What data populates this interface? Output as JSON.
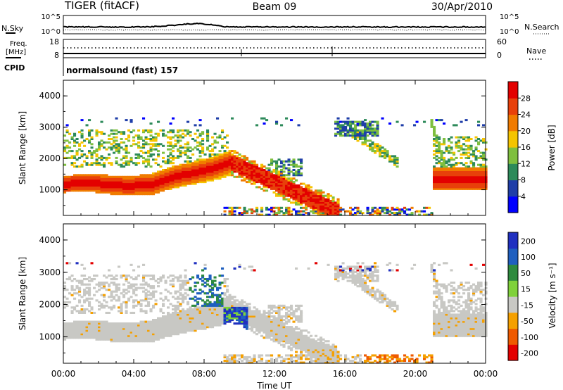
{
  "header": {
    "title": "TIGER (fitACF)",
    "beam": "Beam 09",
    "date": "30/Apr/2010"
  },
  "noise_panel": {
    "left_label": "N.Sky",
    "right_label": "N.Search",
    "left_ticks": [
      "10^5",
      "10^0"
    ],
    "right_ticks": [
      "10^5",
      "10^0"
    ]
  },
  "freq_panel": {
    "left_label_line1": "Freq.",
    "left_label_line2": "[MHz]",
    "right_label": "Nave",
    "left_ticks": [
      "18",
      "8"
    ],
    "right_ticks": [
      "60",
      "0"
    ]
  },
  "cpid": {
    "label": "CPID",
    "value": "normalsound (fast) 157"
  },
  "chart_data": [
    {
      "type": "heatmap",
      "name": "power",
      "ylabel": "Slant Range [km]",
      "ylim": [
        180,
        4500
      ],
      "yticks": [
        "1000",
        "2000",
        "3000",
        "4000"
      ],
      "xticks": [
        "00:00",
        "04:00",
        "08:00",
        "12:00",
        "16:00",
        "20:00",
        "00:00"
      ],
      "colorbar_label": "Power [dB]",
      "colorbar_ticks": [
        "28",
        "24",
        "20",
        "16",
        "12",
        "8",
        "4"
      ],
      "colors": [
        "#0000ff",
        "#1f3ea8",
        "#2d8a5a",
        "#7fbf3f",
        "#f5c400",
        "#f07b00",
        "#e8400a",
        "#e30000"
      ]
    },
    {
      "type": "heatmap",
      "name": "velocity",
      "ylabel": "Slant Range [km]",
      "ylim": [
        180,
        4500
      ],
      "yticks": [
        "1000",
        "2000",
        "3000",
        "4000"
      ],
      "xticks": [
        "00:00",
        "04:00",
        "08:00",
        "12:00",
        "16:00",
        "20:00",
        "00:00"
      ],
      "xlabel": "Time UT",
      "colorbar_label": "Velocity [m s⁻¹]",
      "colorbar_ticks": [
        "200",
        "100",
        "50",
        "15",
        "-15",
        "-50",
        "-100",
        "-200"
      ],
      "colors": [
        "#e30000",
        "#ef5a00",
        "#f5a000",
        "#c8c8c4",
        "#7fd13a",
        "#2e8a3e",
        "#1f5fbf",
        "#2030c0"
      ]
    }
  ]
}
